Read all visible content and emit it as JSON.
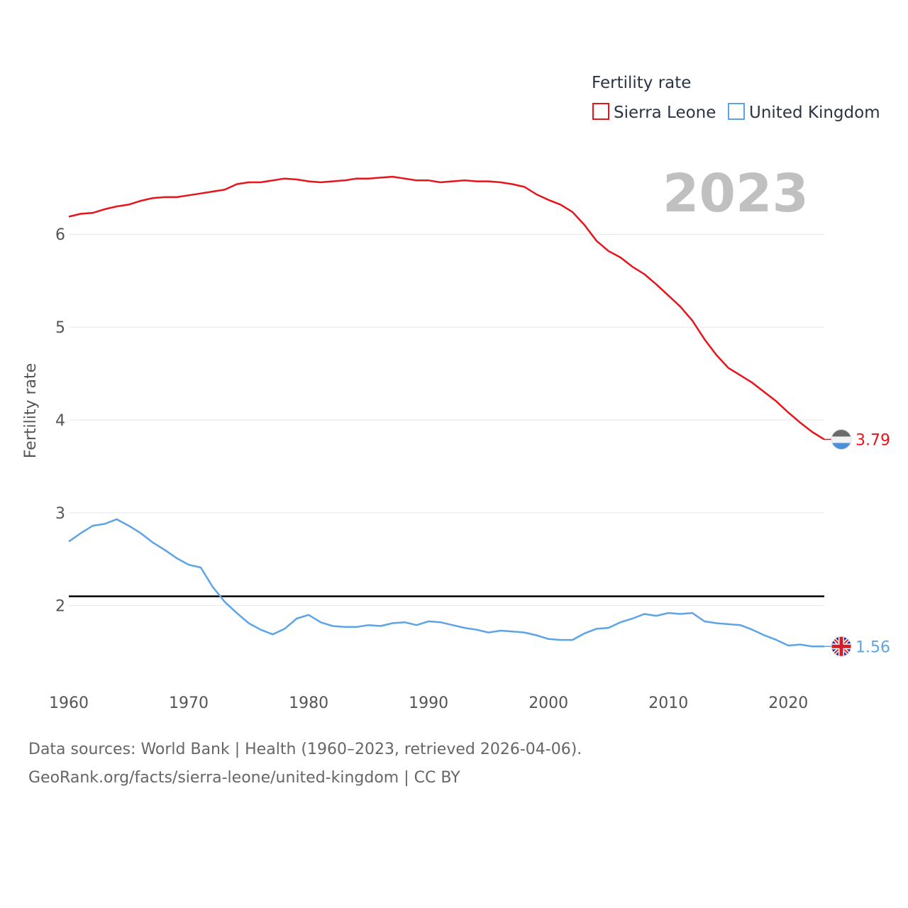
{
  "chart_data": {
    "type": "line",
    "ylabel": "Fertility rate",
    "ylim": [
      1.05,
      6.85
    ],
    "xlim": [
      1960,
      2023
    ],
    "y_ticks": [
      2,
      3,
      4,
      5,
      6
    ],
    "x_ticks": [
      1960,
      1970,
      1980,
      1990,
      2000,
      2010,
      2020
    ],
    "grid": true,
    "legend_title": "Fertility rate",
    "legend_position": "top-right",
    "current_year": "2023",
    "reference_line": 2.1,
    "x": [
      1960,
      1961,
      1962,
      1963,
      1964,
      1965,
      1966,
      1967,
      1968,
      1969,
      1970,
      1971,
      1972,
      1973,
      1974,
      1975,
      1976,
      1977,
      1978,
      1979,
      1980,
      1981,
      1982,
      1983,
      1984,
      1985,
      1986,
      1987,
      1988,
      1989,
      1990,
      1991,
      1992,
      1993,
      1994,
      1995,
      1996,
      1997,
      1998,
      1999,
      2000,
      2001,
      2002,
      2003,
      2004,
      2005,
      2006,
      2007,
      2008,
      2009,
      2010,
      2011,
      2012,
      2013,
      2014,
      2015,
      2016,
      2017,
      2018,
      2019,
      2020,
      2021,
      2022,
      2023
    ],
    "series": [
      {
        "name": "Sierra Leone",
        "color": "#e8141c",
        "end_label": "3.79",
        "flag": "sierra-leone-flag-icon",
        "values": [
          6.19,
          6.22,
          6.23,
          6.27,
          6.3,
          6.32,
          6.36,
          6.39,
          6.4,
          6.4,
          6.42,
          6.44,
          6.46,
          6.48,
          6.54,
          6.56,
          6.56,
          6.58,
          6.6,
          6.59,
          6.57,
          6.56,
          6.57,
          6.58,
          6.6,
          6.6,
          6.61,
          6.62,
          6.6,
          6.58,
          6.58,
          6.56,
          6.57,
          6.58,
          6.57,
          6.57,
          6.56,
          6.54,
          6.51,
          6.43,
          6.37,
          6.32,
          6.24,
          6.1,
          5.93,
          5.82,
          5.75,
          5.65,
          5.57,
          5.46,
          5.34,
          5.22,
          5.07,
          4.87,
          4.7,
          4.56,
          4.48,
          4.4,
          4.3,
          4.2,
          4.08,
          3.97,
          3.87,
          3.79
        ]
      },
      {
        "name": "United Kingdom",
        "color": "#5da4e6",
        "end_label": "1.56",
        "flag": "united-kingdom-flag-icon",
        "values": [
          2.69,
          2.78,
          2.86,
          2.88,
          2.93,
          2.86,
          2.78,
          2.68,
          2.6,
          2.51,
          2.44,
          2.41,
          2.2,
          2.04,
          1.92,
          1.81,
          1.74,
          1.69,
          1.75,
          1.86,
          1.9,
          1.82,
          1.78,
          1.77,
          1.77,
          1.79,
          1.78,
          1.81,
          1.82,
          1.79,
          1.83,
          1.82,
          1.79,
          1.76,
          1.74,
          1.71,
          1.73,
          1.72,
          1.71,
          1.68,
          1.64,
          1.63,
          1.63,
          1.7,
          1.75,
          1.76,
          1.82,
          1.86,
          1.91,
          1.89,
          1.92,
          1.91,
          1.92,
          1.83,
          1.81,
          1.8,
          1.79,
          1.74,
          1.68,
          1.63,
          1.57,
          1.58,
          1.56,
          1.56
        ]
      }
    ]
  },
  "source": {
    "line1": "Data sources: World Bank | Health (1960–2023, retrieved 2026-04-06).",
    "line2": "GeoRank.org/facts/sierra-leone/united-kingdom | CC BY"
  }
}
